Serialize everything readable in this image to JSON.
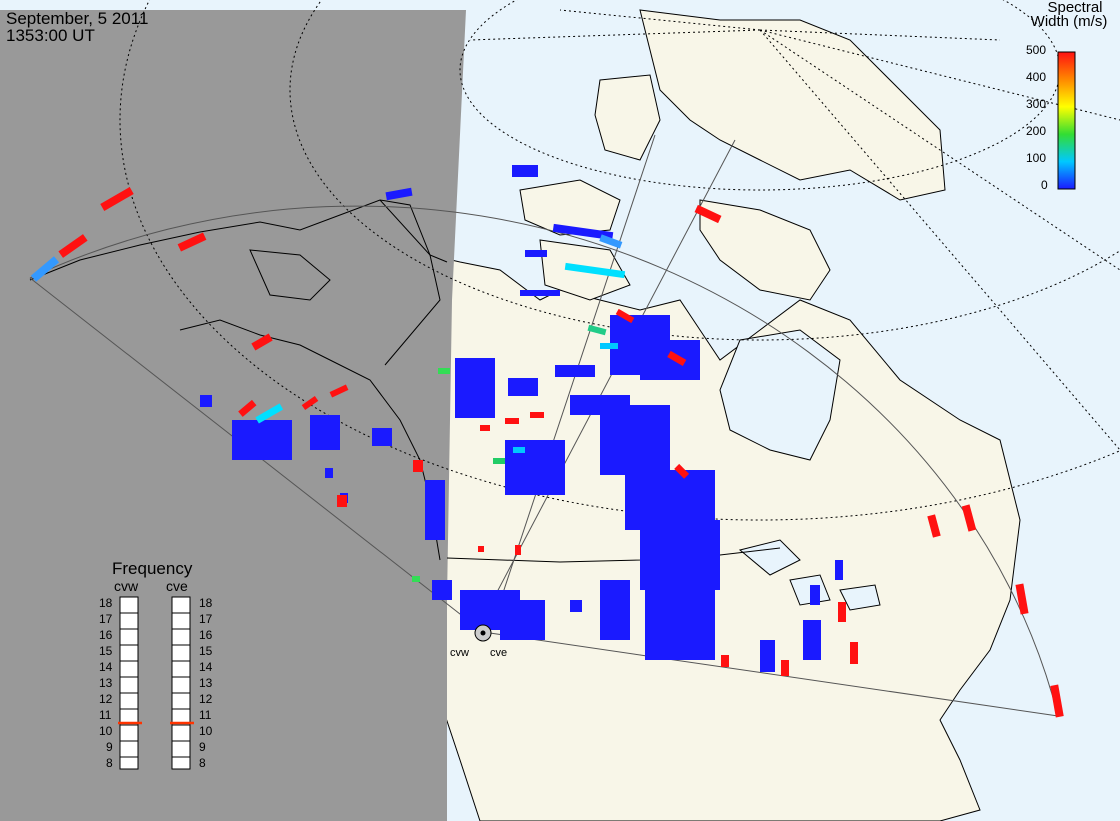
{
  "header": {
    "date": "September, 5 2011",
    "time": "1353:00 UT"
  },
  "colorbar": {
    "title_line1": "Spectral",
    "title_line2": "Width (m/s)",
    "ticks": [
      "0",
      "100",
      "200",
      "300",
      "400",
      "500"
    ],
    "colors": [
      "#1a1aff",
      "#00c8ff",
      "#33dd33",
      "#ffff00",
      "#ff8800",
      "#ff1111"
    ]
  },
  "frequency_panel": {
    "title": "Frequency",
    "radars": [
      "cvw",
      "cve"
    ],
    "scale": [
      "18",
      "17",
      "16",
      "15",
      "14",
      "13",
      "12",
      "11",
      "10",
      "9",
      "8"
    ],
    "current_mhz": {
      "cvw": 10.5,
      "cve": 10.5
    }
  },
  "map": {
    "night_color": "#999999",
    "ocean_color": "#e8f4fc",
    "land_color": "#f8f6e8",
    "site_labels": [
      "cvw",
      "cve"
    ]
  }
}
